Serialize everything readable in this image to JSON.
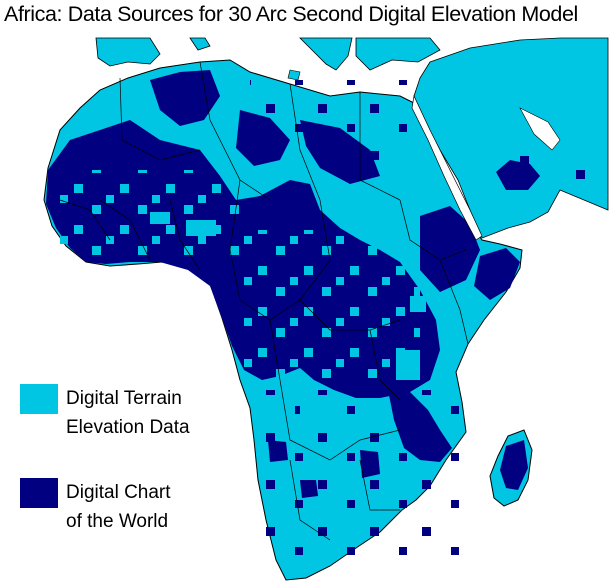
{
  "title": "Africa: Data Sources for 30 Arc Second Digital Elevation Model",
  "colors": {
    "dted": "#00c5e3",
    "dcw": "#000080",
    "background": "#ffffff",
    "border": "#000000"
  },
  "legend": [
    {
      "line1": "Digital Terrain",
      "line2": "Elevation Data",
      "color": "#00c5e3"
    },
    {
      "line1": "Digital Chart",
      "line2": "of the World",
      "color": "#000080"
    }
  ]
}
